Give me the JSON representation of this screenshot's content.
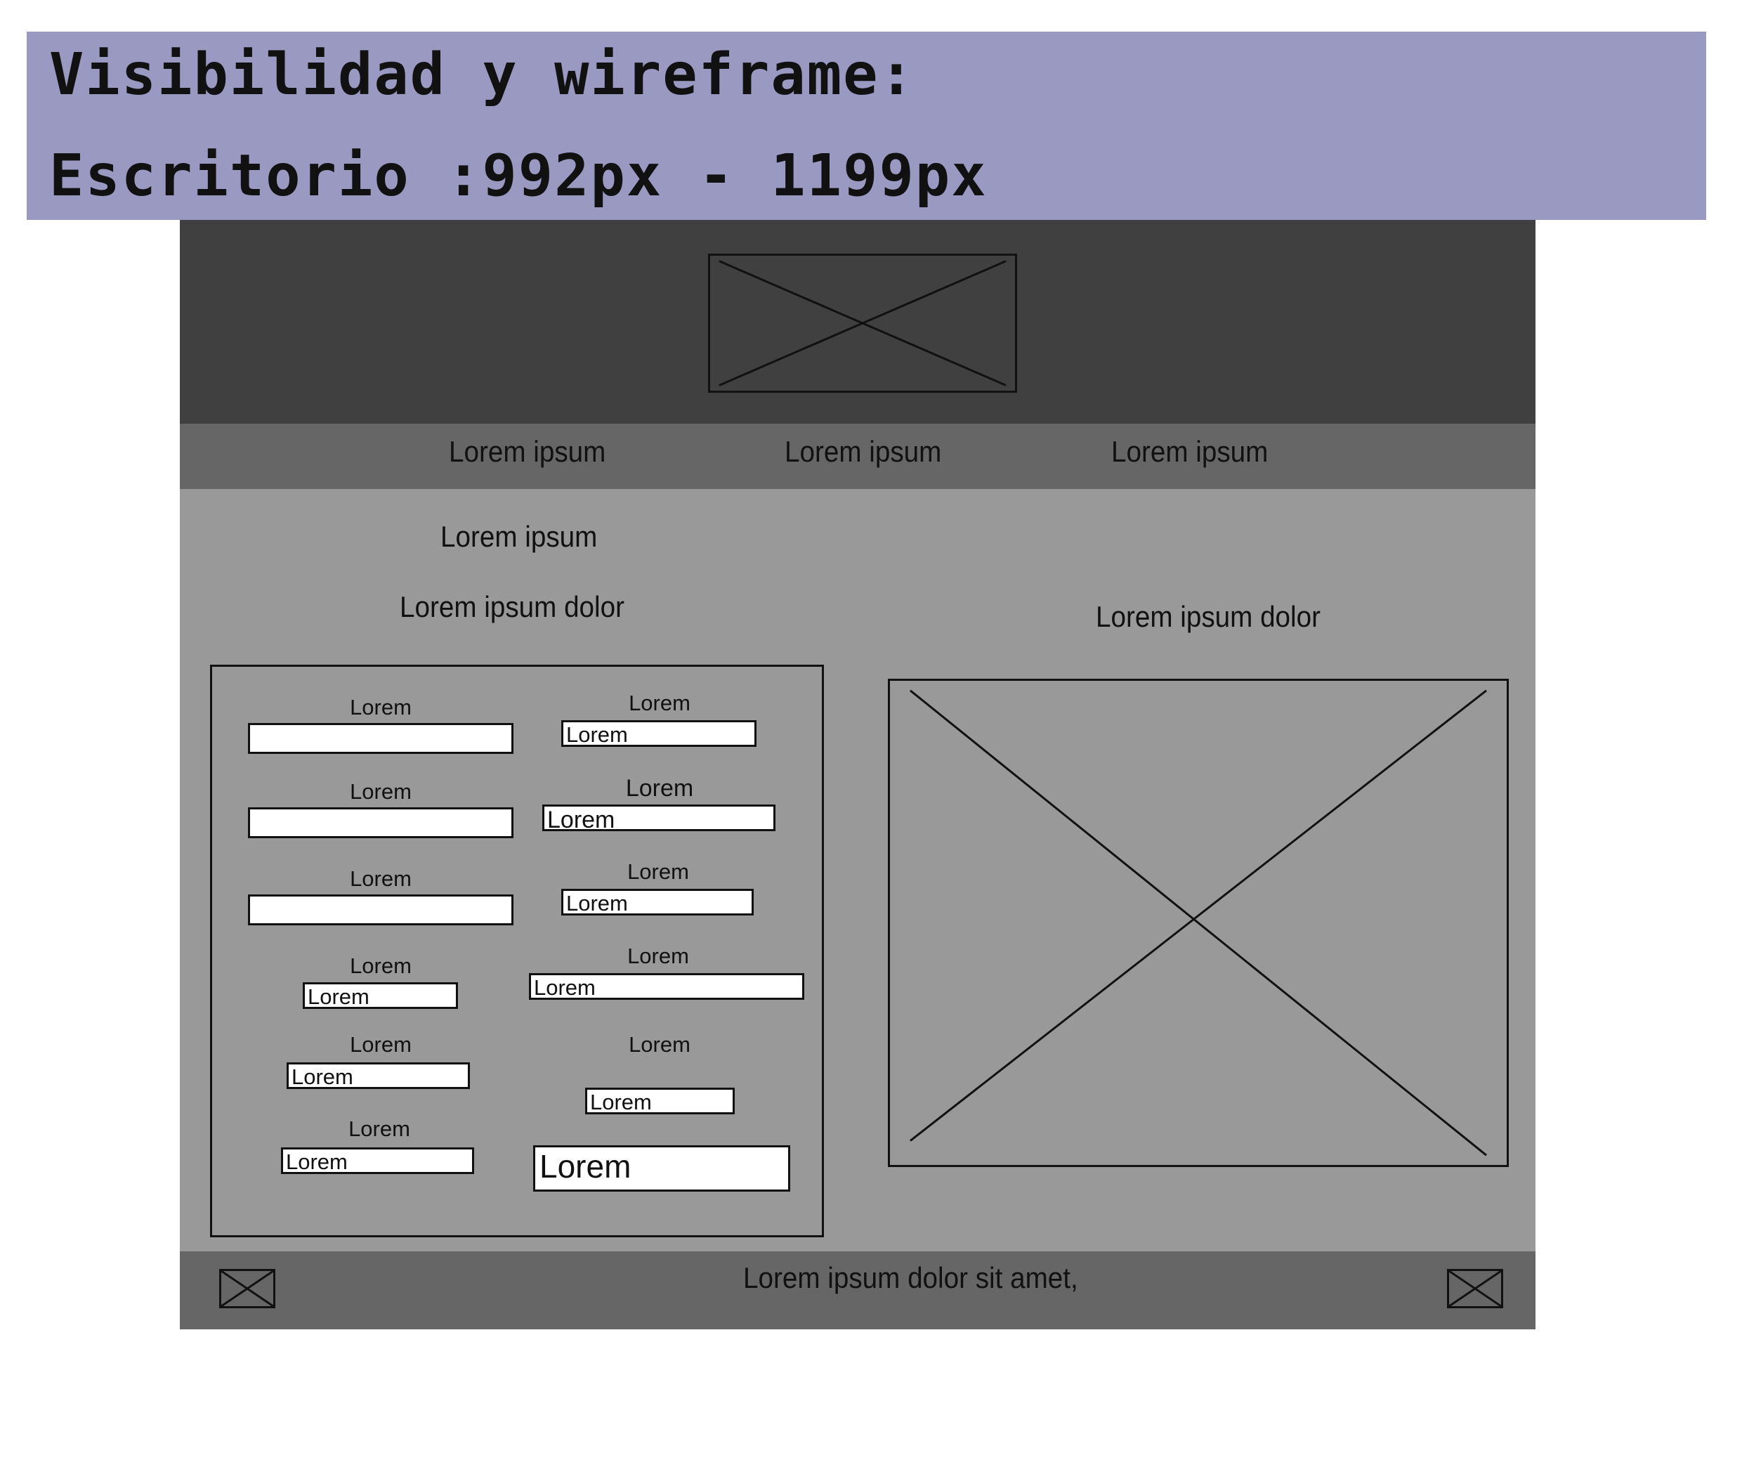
{
  "banner": {
    "title": "Visibilidad y wireframe:",
    "subtitle": "Escritorio :992px - 1199px",
    "background": "#9999c2"
  },
  "header": {
    "background": "#404040",
    "logo_icon": "image-placeholder-icon"
  },
  "nav": {
    "background": "#666666",
    "links": [
      "Lorem ipsum",
      "Lorem ipsum",
      "Lorem ipsum"
    ]
  },
  "main": {
    "background": "#999999",
    "heading": "Lorem ipsum",
    "form_title": "Lorem ipsum dolor",
    "image_title": "Lorem ipsum dolor",
    "image_icon": "image-placeholder-icon",
    "form": {
      "left_column": [
        {
          "label": "Lorem",
          "value": ""
        },
        {
          "label": "Lorem",
          "value": ""
        },
        {
          "label": "Lorem",
          "value": ""
        },
        {
          "label": "Lorem",
          "value": "Lorem"
        },
        {
          "label": "Lorem",
          "value": "Lorem"
        },
        {
          "label": "Lorem",
          "value": "Lorem"
        }
      ],
      "right_column": [
        {
          "label": "Lorem",
          "value": "Lorem"
        },
        {
          "label": "Lorem",
          "value": "Lorem"
        },
        {
          "label": "Lorem",
          "value": "Lorem"
        },
        {
          "label": "Lorem",
          "value": "Lorem"
        },
        {
          "label": "Lorem",
          "value": "Lorem"
        }
      ],
      "submit_label": "Lorem"
    }
  },
  "footer": {
    "background": "#666666",
    "text": "Lorem ipsum dolor sit amet,",
    "left_icon": "image-placeholder-icon",
    "right_icon": "image-placeholder-icon"
  }
}
